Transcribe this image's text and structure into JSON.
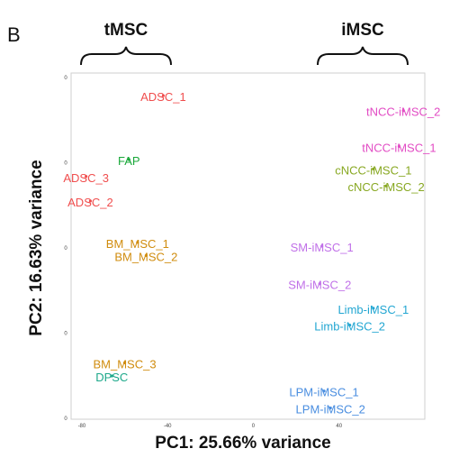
{
  "panel_letter": "B",
  "groups": [
    {
      "label": "tMSC"
    },
    {
      "label": "iMSC"
    }
  ],
  "chart_data": {
    "type": "scatter",
    "title": "",
    "xlabel": "PC1: 25.66% variance",
    "ylabel": "PC2: 16.63% variance",
    "xlim": [
      -85,
      80
    ],
    "ylim": [
      -102,
      82
    ],
    "x_ticks": [
      "-80",
      "-40",
      "0",
      "40"
    ],
    "y_ticks": [
      "0",
      "0",
      "0",
      "0",
      "0"
    ],
    "grid": false,
    "legend": "none",
    "points": [
      {
        "label": "ADSC_1",
        "x": -42,
        "y": 70,
        "color": "#f04e4e"
      },
      {
        "label": "FAP",
        "x": -58,
        "y": 36,
        "color": "#1aa83a"
      },
      {
        "label": "ADSC_3",
        "x": -78,
        "y": 27,
        "color": "#f04e4e"
      },
      {
        "label": "ADSC_2",
        "x": -76,
        "y": 14,
        "color": "#f04e4e"
      },
      {
        "label": "BM_MSC_1",
        "x": -54,
        "y": -8,
        "color": "#d08c0e"
      },
      {
        "label": "BM_MSC_2",
        "x": -50,
        "y": -15,
        "color": "#d08c0e"
      },
      {
        "label": "BM_MSC_3",
        "x": -60,
        "y": -72,
        "color": "#d08c0e"
      },
      {
        "label": "DPSC",
        "x": -66,
        "y": -79,
        "color": "#1ca88a"
      },
      {
        "label": "tNCC-iMSC_2",
        "x": 70,
        "y": 62,
        "color": "#e24cc4"
      },
      {
        "label": "tNCC-iMSC_1",
        "x": 68,
        "y": 43,
        "color": "#e24cc4"
      },
      {
        "label": "cNCC-iMSC_1",
        "x": 56,
        "y": 31,
        "color": "#88a822"
      },
      {
        "label": "cNCC-iMSC_2",
        "x": 62,
        "y": 22,
        "color": "#88a822"
      },
      {
        "label": "SM-iMSC_1",
        "x": 32,
        "y": -10,
        "color": "#c070e8"
      },
      {
        "label": "SM-iMSC_2",
        "x": 31,
        "y": -30,
        "color": "#c070e8"
      },
      {
        "label": "Limb-iMSC_1",
        "x": 56,
        "y": -43,
        "color": "#22a6d2"
      },
      {
        "label": "Limb-iMSC_2",
        "x": 45,
        "y": -52,
        "color": "#22a6d2"
      },
      {
        "label": "LPM-iMSC_1",
        "x": 33,
        "y": -87,
        "color": "#4a8ee0"
      },
      {
        "label": "LPM-iMSC_2",
        "x": 36,
        "y": -96,
        "color": "#4a8ee0"
      }
    ]
  }
}
